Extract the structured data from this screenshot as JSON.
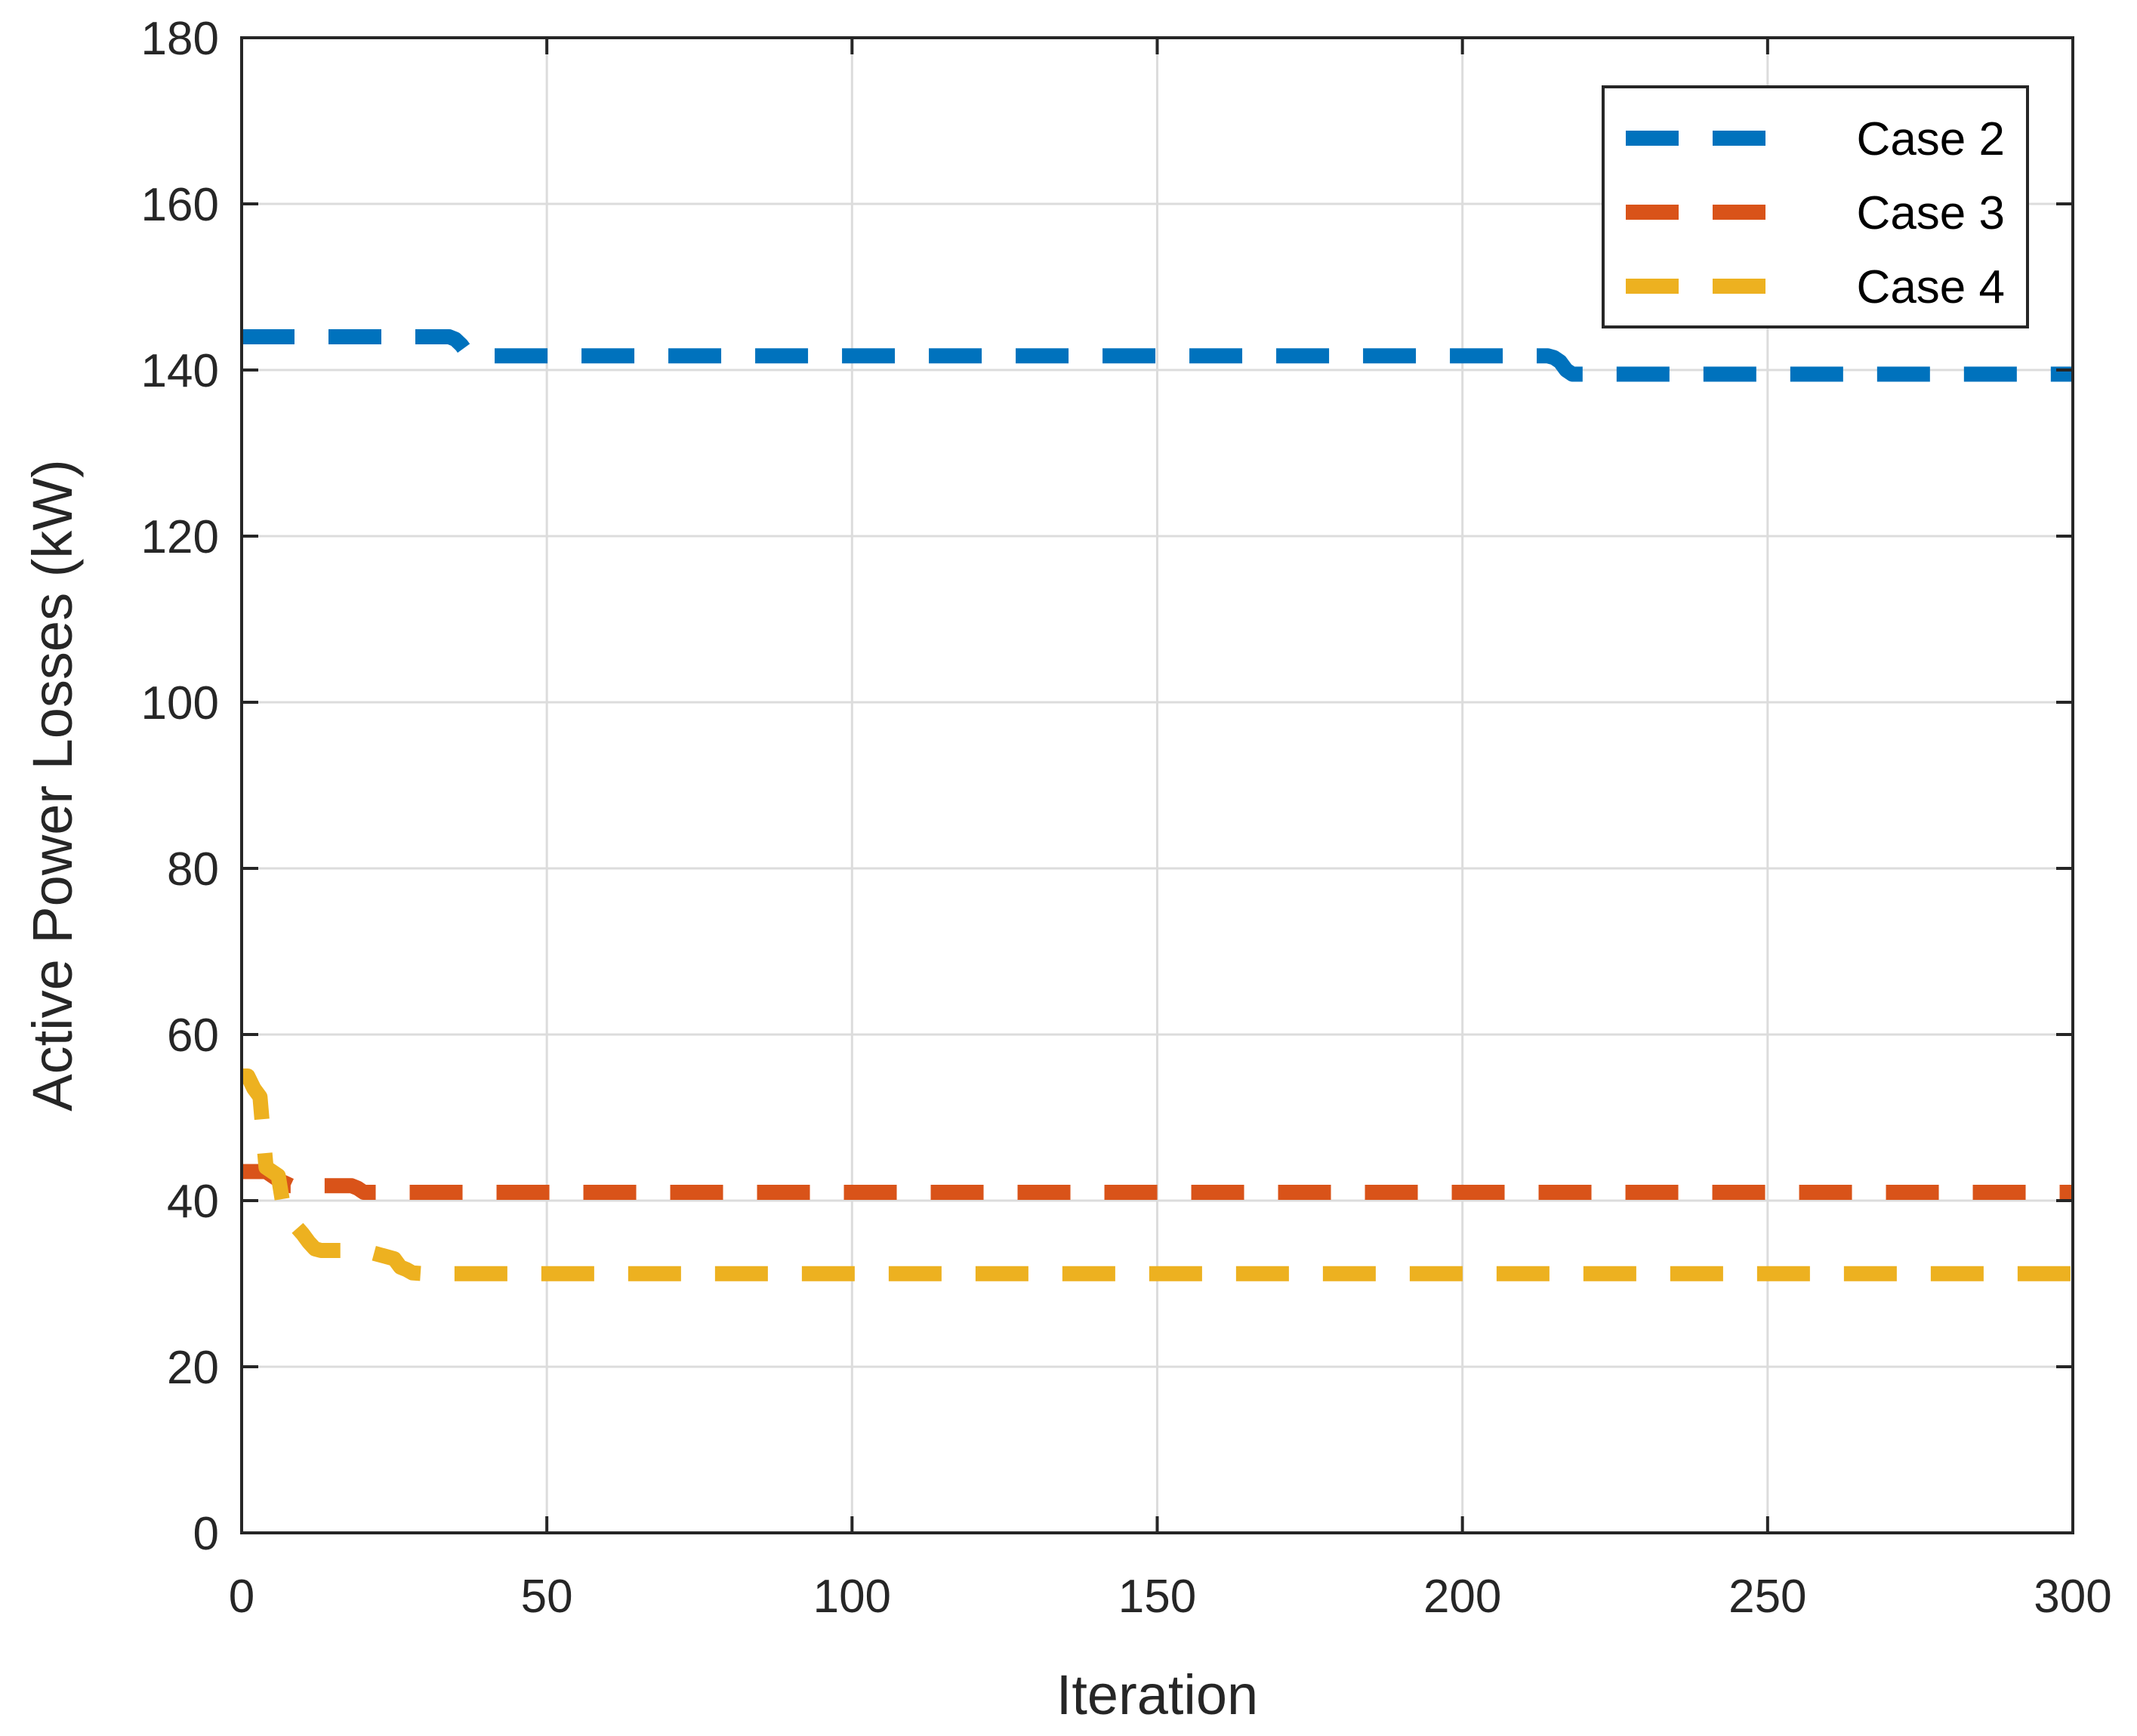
{
  "chart_data": {
    "type": "line",
    "title": "",
    "xlabel": "Iteration",
    "ylabel": "Active Power Losses (kW)",
    "xlim": [
      0,
      300
    ],
    "ylim": [
      0,
      180
    ],
    "xticks": [
      0,
      50,
      100,
      150,
      200,
      250,
      300
    ],
    "yticks": [
      0,
      20,
      40,
      60,
      80,
      100,
      120,
      140,
      160,
      180
    ],
    "grid": true,
    "legend_position": "top-right",
    "series": [
      {
        "name": "Case 2",
        "color": "#0072BD",
        "line_style": "dashed",
        "x": [
          0,
          34,
          35,
          36,
          37,
          38,
          214,
          215,
          216,
          217,
          218,
          300
        ],
        "y": [
          144,
          144,
          143.7,
          143,
          142,
          141.7,
          141.7,
          141.5,
          141,
          140,
          139.5,
          139.5
        ]
      },
      {
        "name": "Case 3",
        "color": "#D95319",
        "line_style": "dashed",
        "x": [
          0,
          4,
          6,
          8,
          10,
          18,
          19,
          20,
          22,
          300
        ],
        "y": [
          43.5,
          43.5,
          42.5,
          41.8,
          41.8,
          41.8,
          41.5,
          41,
          41,
          41
        ]
      },
      {
        "name": "Case 4",
        "color": "#EDB120",
        "line_style": "dashed",
        "x": [
          0,
          1,
          2,
          3,
          4,
          5,
          6,
          7,
          10,
          11,
          12,
          13,
          16,
          20,
          25,
          26,
          27,
          28,
          30,
          300
        ],
        "y": [
          55,
          55,
          53.5,
          52.5,
          44,
          43.5,
          43,
          38.5,
          36,
          35,
          34.2,
          34,
          34,
          34,
          33,
          32,
          31.7,
          31.3,
          31.2,
          31.2
        ]
      }
    ]
  }
}
